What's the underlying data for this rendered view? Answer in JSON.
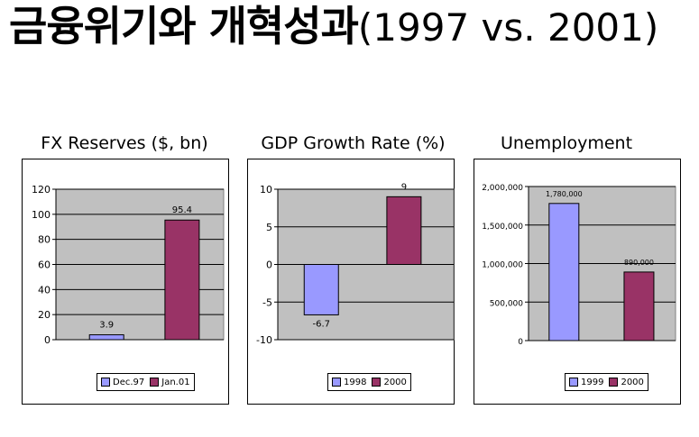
{
  "page_title": {
    "korean": "금융위기와 개혁성과",
    "rest": "(1997 vs. 2001)"
  },
  "colors": {
    "series1": "#9999ff",
    "series2": "#993366",
    "plot_bg": "#c0c0c0"
  },
  "chart_data": [
    {
      "type": "bar",
      "title": "FX Reserves ($, bn)",
      "categories": [
        "Dec.97",
        "Jan.01"
      ],
      "values": [
        3.9,
        95.4
      ],
      "data_labels": [
        "3.9",
        "95.4"
      ],
      "ylim": [
        0,
        120
      ],
      "yticks": [
        "0",
        "20",
        "40",
        "60",
        "80",
        "100",
        "120"
      ],
      "ytick_values": [
        0,
        20,
        40,
        60,
        80,
        100,
        120
      ],
      "legend": [
        "Dec.97",
        "Jan.01"
      ],
      "legend_position": "bottom",
      "grid": true
    },
    {
      "type": "bar",
      "title": "GDP Growth Rate (%)",
      "categories": [
        "1998",
        "2000"
      ],
      "values": [
        -6.7,
        9
      ],
      "data_labels": [
        "-6.7",
        "9"
      ],
      "ylim": [
        -10,
        10
      ],
      "yticks": [
        "-10",
        "-5",
        "0",
        "5",
        "10"
      ],
      "ytick_values": [
        -10,
        -5,
        0,
        5,
        10
      ],
      "legend": [
        "1998",
        "2000"
      ],
      "legend_position": "bottom",
      "grid": true
    },
    {
      "type": "bar",
      "title": "Unemployment",
      "categories": [
        "1999",
        "2000"
      ],
      "values": [
        1780000,
        890000
      ],
      "data_labels": [
        "1,780,000",
        "890,000"
      ],
      "ylim": [
        0,
        2000000
      ],
      "yticks": [
        "0",
        "500,000",
        "1,000,000",
        "1,500,000",
        "2,000,000"
      ],
      "ytick_values": [
        0,
        500000,
        1000000,
        1500000,
        2000000
      ],
      "legend": [
        "1999",
        "2000"
      ],
      "legend_position": "bottom",
      "grid": true
    }
  ]
}
